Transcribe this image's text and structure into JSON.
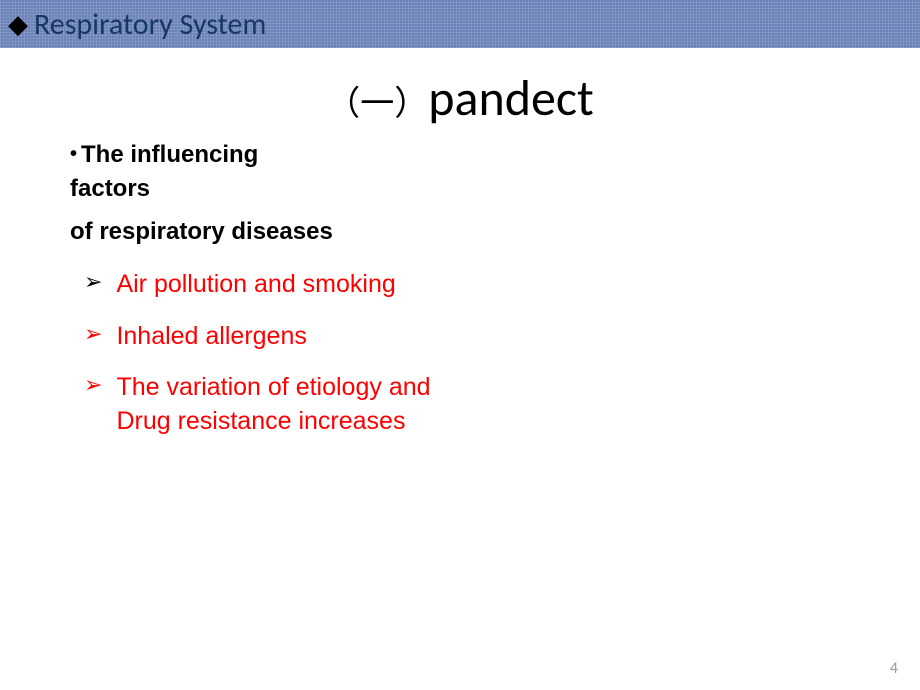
{
  "header": {
    "diamond": "◆",
    "title": "Respiratory System"
  },
  "title": {
    "cjk": "（一）",
    "latin": "pandect"
  },
  "sub": {
    "dot": "•",
    "line1a": "The influencing",
    "line1b": "factors",
    "line2": "of respiratory diseases"
  },
  "bullets": [
    {
      "glyph": "➢",
      "glyph_color": "black",
      "text": "Air pollution and smoking"
    },
    {
      "glyph": "➢",
      "glyph_color": "red",
      "text": "Inhaled allergens"
    },
    {
      "glyph": "➢",
      "glyph_color": "red",
      "text": "The variation of etiology and  Drug resistance increases"
    }
  ],
  "page_number": "4",
  "colors": {
    "header_bg": "#6b82b8",
    "header_text": "#17375e",
    "bullet_text": "#ff0000",
    "page_num": "#9a9a9a",
    "body_bg": "#ffffff"
  }
}
